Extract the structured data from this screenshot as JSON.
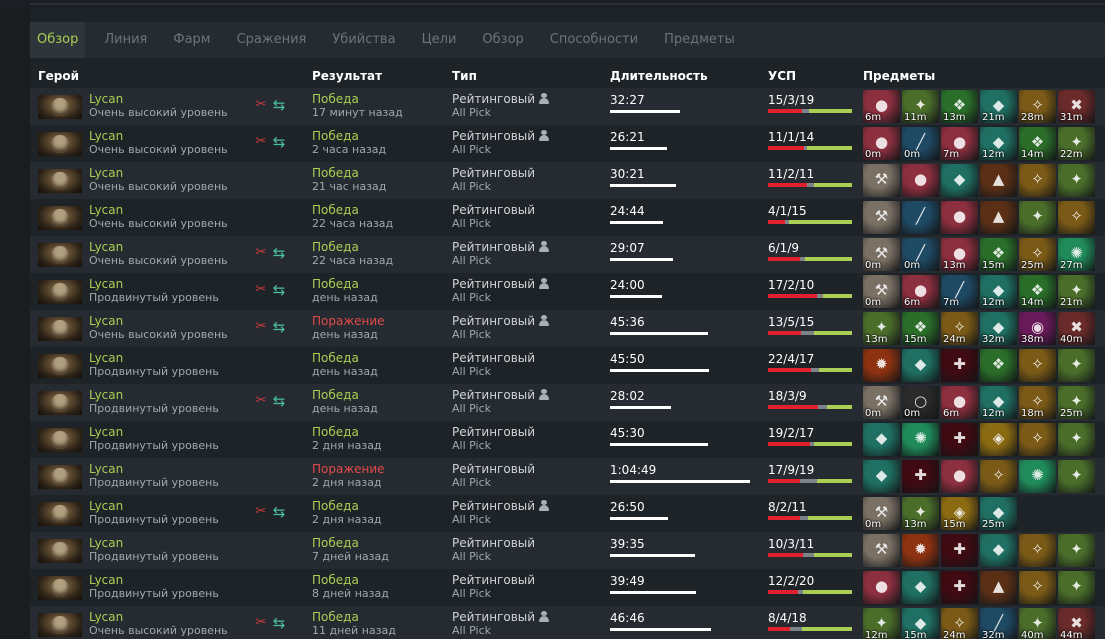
{
  "tabs": [
    {
      "label": "Обзор",
      "active": true
    },
    {
      "label": "Линия",
      "active": false
    },
    {
      "label": "Фарм",
      "active": false
    },
    {
      "label": "Сражения",
      "active": false
    },
    {
      "label": "Убийства",
      "active": false
    },
    {
      "label": "Цели",
      "active": false
    },
    {
      "label": "Обзор",
      "active": false
    },
    {
      "label": "Способности",
      "active": false
    },
    {
      "label": "Предметы",
      "active": false
    }
  ],
  "columns": {
    "hero": "Герой",
    "result": "Результат",
    "type": "Тип",
    "duration": "Длительность",
    "kda": "УСП",
    "items": "Предметы"
  },
  "colors": {
    "win": "#a9cf54",
    "loss": "#e04a4a",
    "kill": "#e2212f",
    "death": "#7d8388",
    "assist": "#a9cf54"
  },
  "item_palette": {
    "bottle": "#8c2f3f",
    "hood": "#1f6f62",
    "boots": "#5a2f16",
    "treads": "#4a6d2a",
    "helm": "#6c7a84",
    "axe": "#7a7064",
    "claw": "#6a2a2a",
    "satanic": "#3f0a12",
    "butterfly": "#2a6e2a",
    "ring": "#2a2a2a",
    "wand": "#1f4a64",
    "orb": "#6a1a5a",
    "lotus": "#2a7a44",
    "fire": "#8c3210",
    "gold": "#8a6a12",
    "wings": "#7a5a16",
    "spire": "#1f8a5a"
  },
  "rows": [
    {
      "hero": "Lycan",
      "skill": "Очень высокий уровень",
      "party": true,
      "result": "Победа",
      "outcome": "win",
      "ago": "17 минут назад",
      "type": "Рейтинговый",
      "solo": true,
      "mode": "All Pick",
      "duration": "32:27",
      "duration_min": 32.45,
      "kda": "15/3/19",
      "k": 15,
      "d": 3,
      "a": 19,
      "items": [
        {
          "icon": "bottle-icon",
          "time": "6m"
        },
        {
          "icon": "treads-icon",
          "time": "11m"
        },
        {
          "icon": "butterfly-icon",
          "time": "13m"
        },
        {
          "icon": "hood-icon",
          "time": "21m"
        },
        {
          "icon": "wings-icon",
          "time": "28m"
        },
        {
          "icon": "claw-icon",
          "time": "31m"
        }
      ]
    },
    {
      "hero": "Lycan",
      "skill": "Очень высокий уровень",
      "party": true,
      "result": "Победа",
      "outcome": "win",
      "ago": "2 часа назад",
      "type": "Рейтинговый",
      "solo": true,
      "mode": "All Pick",
      "duration": "26:21",
      "duration_min": 26.35,
      "kda": "11/1/14",
      "k": 11,
      "d": 1,
      "a": 14,
      "items": [
        {
          "icon": "bottle-icon",
          "time": "0m"
        },
        {
          "icon": "wand-icon",
          "time": "0m"
        },
        {
          "icon": "bottle-icon",
          "time": "7m"
        },
        {
          "icon": "hood-icon",
          "time": "12m"
        },
        {
          "icon": "butterfly-icon",
          "time": "14m"
        },
        {
          "icon": "treads-icon",
          "time": "22m"
        }
      ]
    },
    {
      "hero": "Lycan",
      "skill": "Очень высокий уровень",
      "party": false,
      "result": "Победа",
      "outcome": "win",
      "ago": "21 час назад",
      "type": "Рейтинговый",
      "solo": false,
      "mode": "All Pick",
      "duration": "30:21",
      "duration_min": 30.35,
      "kda": "11/2/11",
      "k": 11,
      "d": 2,
      "a": 11,
      "items": [
        {
          "icon": "axe-icon",
          "time": ""
        },
        {
          "icon": "bottle-icon",
          "time": ""
        },
        {
          "icon": "hood-icon",
          "time": ""
        },
        {
          "icon": "boots-icon",
          "time": ""
        },
        {
          "icon": "wings-icon",
          "time": ""
        },
        {
          "icon": "treads-icon",
          "time": ""
        }
      ]
    },
    {
      "hero": "Lycan",
      "skill": "Очень высокий уровень",
      "party": false,
      "result": "Победа",
      "outcome": "win",
      "ago": "22 часа назад",
      "type": "Рейтинговый",
      "solo": false,
      "mode": "All Pick",
      "duration": "24:44",
      "duration_min": 24.73,
      "kda": "4/1/15",
      "k": 4,
      "d": 1,
      "a": 15,
      "items": [
        {
          "icon": "axe-icon",
          "time": ""
        },
        {
          "icon": "wand-icon",
          "time": ""
        },
        {
          "icon": "bottle-icon",
          "time": ""
        },
        {
          "icon": "boots-icon",
          "time": ""
        },
        {
          "icon": "treads-icon",
          "time": ""
        },
        {
          "icon": "wings-icon",
          "time": ""
        }
      ]
    },
    {
      "hero": "Lycan",
      "skill": "Очень высокий уровень",
      "party": true,
      "result": "Победа",
      "outcome": "win",
      "ago": "22 часа назад",
      "type": "Рейтинговый",
      "solo": true,
      "mode": "All Pick",
      "duration": "29:07",
      "duration_min": 29.12,
      "kda": "6/1/9",
      "k": 6,
      "d": 1,
      "a": 9,
      "items": [
        {
          "icon": "axe-icon",
          "time": "0m"
        },
        {
          "icon": "wand-icon",
          "time": "0m"
        },
        {
          "icon": "bottle-icon",
          "time": "13m"
        },
        {
          "icon": "butterfly-icon",
          "time": "15m"
        },
        {
          "icon": "wings-icon",
          "time": "25m"
        },
        {
          "icon": "spire-icon",
          "time": "27m"
        }
      ]
    },
    {
      "hero": "Lycan",
      "skill": "Продвинутый уровень",
      "party": true,
      "result": "Победа",
      "outcome": "win",
      "ago": "день назад",
      "type": "Рейтинговый",
      "solo": true,
      "mode": "All Pick",
      "duration": "24:00",
      "duration_min": 24.0,
      "kda": "17/2/10",
      "k": 17,
      "d": 2,
      "a": 10,
      "items": [
        {
          "icon": "axe-icon",
          "time": "0m"
        },
        {
          "icon": "bottle-icon",
          "time": "6m"
        },
        {
          "icon": "wand-icon",
          "time": "7m"
        },
        {
          "icon": "hood-icon",
          "time": "12m"
        },
        {
          "icon": "butterfly-icon",
          "time": "14m"
        },
        {
          "icon": "treads-icon",
          "time": "21m"
        }
      ]
    },
    {
      "hero": "Lycan",
      "skill": "Очень высокий уровень",
      "party": true,
      "result": "Поражение",
      "outcome": "loss",
      "ago": "день назад",
      "type": "Рейтинговый",
      "solo": true,
      "mode": "All Pick",
      "duration": "45:36",
      "duration_min": 45.6,
      "kda": "13/5/15",
      "k": 13,
      "d": 5,
      "a": 15,
      "items": [
        {
          "icon": "treads-icon",
          "time": "13m"
        },
        {
          "icon": "butterfly-icon",
          "time": "15m"
        },
        {
          "icon": "wings-icon",
          "time": "24m"
        },
        {
          "icon": "hood-icon",
          "time": "32m"
        },
        {
          "icon": "orb-icon",
          "time": "38m"
        },
        {
          "icon": "claw-icon",
          "time": "40m"
        }
      ]
    },
    {
      "hero": "Lycan",
      "skill": "Продвинутый уровень",
      "party": false,
      "result": "Победа",
      "outcome": "win",
      "ago": "день назад",
      "type": "Рейтинговый",
      "solo": false,
      "mode": "All Pick",
      "duration": "45:50",
      "duration_min": 45.83,
      "kda": "22/4/17",
      "k": 22,
      "d": 4,
      "a": 17,
      "items": [
        {
          "icon": "fire-icon",
          "time": ""
        },
        {
          "icon": "hood-icon",
          "time": ""
        },
        {
          "icon": "satanic-icon",
          "time": ""
        },
        {
          "icon": "butterfly-icon",
          "time": ""
        },
        {
          "icon": "wings-icon",
          "time": ""
        },
        {
          "icon": "treads-icon",
          "time": ""
        }
      ]
    },
    {
      "hero": "Lycan",
      "skill": "Продвинутый уровень",
      "party": true,
      "result": "Победа",
      "outcome": "win",
      "ago": "день назад",
      "type": "Рейтинговый",
      "solo": true,
      "mode": "All Pick",
      "duration": "28:02",
      "duration_min": 28.03,
      "kda": "18/3/9",
      "k": 18,
      "d": 3,
      "a": 9,
      "items": [
        {
          "icon": "axe-icon",
          "time": "0m"
        },
        {
          "icon": "ring-icon",
          "time": "0m"
        },
        {
          "icon": "bottle-icon",
          "time": "6m"
        },
        {
          "icon": "hood-icon",
          "time": "12m"
        },
        {
          "icon": "wings-icon",
          "time": "18m"
        },
        {
          "icon": "treads-icon",
          "time": "25m"
        }
      ]
    },
    {
      "hero": "Lycan",
      "skill": "Продвинутый уровень",
      "party": false,
      "result": "Победа",
      "outcome": "win",
      "ago": "2 дня назад",
      "type": "Рейтинговый",
      "solo": false,
      "mode": "All Pick",
      "duration": "45:30",
      "duration_min": 45.5,
      "kda": "19/2/17",
      "k": 19,
      "d": 2,
      "a": 17,
      "items": [
        {
          "icon": "hood-icon",
          "time": ""
        },
        {
          "icon": "spire-icon",
          "time": ""
        },
        {
          "icon": "satanic-icon",
          "time": ""
        },
        {
          "icon": "gold-icon",
          "time": ""
        },
        {
          "icon": "wings-icon",
          "time": ""
        },
        {
          "icon": "treads-icon",
          "time": ""
        }
      ]
    },
    {
      "hero": "Lycan",
      "skill": "Продвинутый уровень",
      "party": false,
      "result": "Поражение",
      "outcome": "loss",
      "ago": "2 дня назад",
      "type": "Рейтинговый",
      "solo": false,
      "mode": "All Pick",
      "duration": "1:04:49",
      "duration_min": 64.82,
      "kda": "17/9/19",
      "k": 17,
      "d": 9,
      "a": 19,
      "items": [
        {
          "icon": "hood-icon",
          "time": ""
        },
        {
          "icon": "satanic-icon",
          "time": ""
        },
        {
          "icon": "bottle-icon",
          "time": ""
        },
        {
          "icon": "wings-icon",
          "time": ""
        },
        {
          "icon": "spire-icon",
          "time": ""
        },
        {
          "icon": "treads-icon",
          "time": ""
        }
      ]
    },
    {
      "hero": "Lycan",
      "skill": "Продвинутый уровень",
      "party": true,
      "result": "Победа",
      "outcome": "win",
      "ago": "2 дня назад",
      "type": "Рейтинговый",
      "solo": true,
      "mode": "All Pick",
      "duration": "26:50",
      "duration_min": 26.83,
      "kda": "8/2/11",
      "k": 8,
      "d": 2,
      "a": 11,
      "items": [
        {
          "icon": "axe-icon",
          "time": "0m"
        },
        {
          "icon": "treads-icon",
          "time": "13m"
        },
        {
          "icon": "gold-icon",
          "time": "15m"
        },
        {
          "icon": "hood-icon",
          "time": "25m"
        }
      ]
    },
    {
      "hero": "Lycan",
      "skill": "Продвинутый уровень",
      "party": false,
      "result": "Победа",
      "outcome": "win",
      "ago": "7 дней назад",
      "type": "Рейтинговый",
      "solo": false,
      "mode": "All Pick",
      "duration": "39:35",
      "duration_min": 39.58,
      "kda": "10/3/11",
      "k": 10,
      "d": 3,
      "a": 11,
      "items": [
        {
          "icon": "axe-icon",
          "time": ""
        },
        {
          "icon": "fire-icon",
          "time": ""
        },
        {
          "icon": "satanic-icon",
          "time": ""
        },
        {
          "icon": "hood-icon",
          "time": ""
        },
        {
          "icon": "wings-icon",
          "time": ""
        },
        {
          "icon": "treads-icon",
          "time": ""
        }
      ]
    },
    {
      "hero": "Lycan",
      "skill": "Продвинутый уровень",
      "party": false,
      "result": "Победа",
      "outcome": "win",
      "ago": "8 дней назад",
      "type": "Рейтинговый",
      "solo": false,
      "mode": "All Pick",
      "duration": "39:49",
      "duration_min": 39.82,
      "kda": "12/2/20",
      "k": 12,
      "d": 2,
      "a": 20,
      "items": [
        {
          "icon": "bottle-icon",
          "time": ""
        },
        {
          "icon": "hood-icon",
          "time": ""
        },
        {
          "icon": "satanic-icon",
          "time": ""
        },
        {
          "icon": "boots-icon",
          "time": ""
        },
        {
          "icon": "wings-icon",
          "time": ""
        },
        {
          "icon": "treads-icon",
          "time": ""
        }
      ]
    },
    {
      "hero": "Lycan",
      "skill": "Очень высокий уровень",
      "party": true,
      "result": "Победа",
      "outcome": "win",
      "ago": "11 дней назад",
      "type": "Рейтинговый",
      "solo": true,
      "mode": "All Pick",
      "duration": "46:46",
      "duration_min": 46.77,
      "kda": "8/4/18",
      "k": 8,
      "d": 4,
      "a": 18,
      "items": [
        {
          "icon": "treads-icon",
          "time": "12m"
        },
        {
          "icon": "hood-icon",
          "time": "15m"
        },
        {
          "icon": "wings-icon",
          "time": "24m"
        },
        {
          "icon": "wand-icon",
          "time": "32m"
        },
        {
          "icon": "treads-icon",
          "time": "40m"
        },
        {
          "icon": "claw-icon",
          "time": "44m"
        }
      ]
    }
  ]
}
